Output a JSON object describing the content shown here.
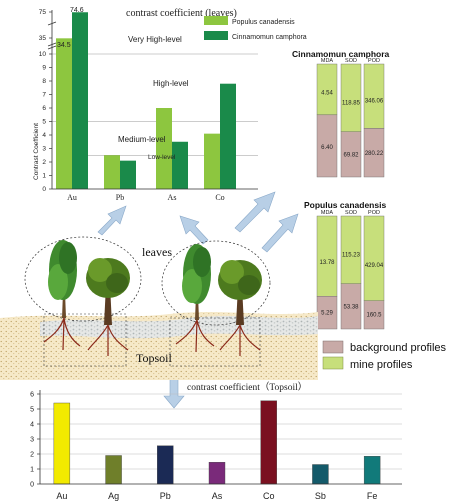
{
  "colors": {
    "populus": "#8dc63f",
    "cinnamomum": "#1a8a4a",
    "mine": "#c7df7b",
    "background": "#c8aaa7",
    "au": "#f2ea00",
    "ag": "#6f7f2a",
    "pb": "#1b2a55",
    "as": "#7a2a7a",
    "co": "#7a1020",
    "sb": "#145a6a",
    "fe": "#117a7a"
  },
  "leaves_chart": {
    "title": "contrast coefficient  (leaves)",
    "ylabel": "Contrast Coefficient",
    "yticks": [
      "0",
      "1",
      "2",
      "3",
      "4",
      "5",
      "6",
      "7",
      "8",
      "9",
      "10",
      "35",
      "75"
    ],
    "level_labels": [
      "Very High-level",
      "High-level",
      "Medium-level",
      "Low-level"
    ],
    "legend": [
      "Populus canadensis",
      "Cinnamomun camphora"
    ],
    "data_labels": [
      "34.5",
      "74.6"
    ],
    "chart_data": {
      "type": "bar",
      "categories": [
        "Au",
        "Pb",
        "As",
        "Co"
      ],
      "series": [
        {
          "name": "Populus canadensis",
          "values": [
            34.5,
            2.5,
            6.0,
            4.1
          ]
        },
        {
          "name": "Cinnamomun camphora",
          "values": [
            74.6,
            2.1,
            3.5,
            7.8
          ]
        }
      ],
      "ylim": [
        0,
        75
      ],
      "axis_break": true
    }
  },
  "cinnamomum_stack": {
    "title": "Cinnamomun camphora",
    "columns": [
      {
        "label": "MDA",
        "top": "4.54",
        "bottom": "6.40"
      },
      {
        "label": "SOD",
        "top": "118.85",
        "bottom": "69.82"
      },
      {
        "label": "POD",
        "top": "346.06",
        "bottom": "280.22"
      }
    ]
  },
  "populus_stack": {
    "title": "Populus canadensis",
    "columns": [
      {
        "label": "MDA",
        "top": "13.78",
        "bottom": "5.29"
      },
      {
        "label": "SOD",
        "top": "115.23",
        "bottom": "53.38"
      },
      {
        "label": "POD",
        "top": "429.04",
        "bottom": "160.5"
      }
    ]
  },
  "illustration": {
    "leaves_label": "leaves",
    "topsoil_label": "Topsoil"
  },
  "legend_profiles": {
    "background": "background profiles",
    "mine": "mine profiles"
  },
  "topsoil_chart": {
    "title": "contrast coefficient（Topsoil）",
    "yticks": [
      "0",
      "1",
      "2",
      "3",
      "4",
      "5",
      "6"
    ],
    "chart_data": {
      "type": "bar",
      "categories": [
        "Au",
        "Ag",
        "Pb",
        "As",
        "Co",
        "Sb",
        "Fe"
      ],
      "values": [
        5.4,
        1.9,
        2.55,
        1.45,
        5.55,
        1.3,
        1.85
      ],
      "ylim": [
        0,
        6
      ]
    }
  }
}
